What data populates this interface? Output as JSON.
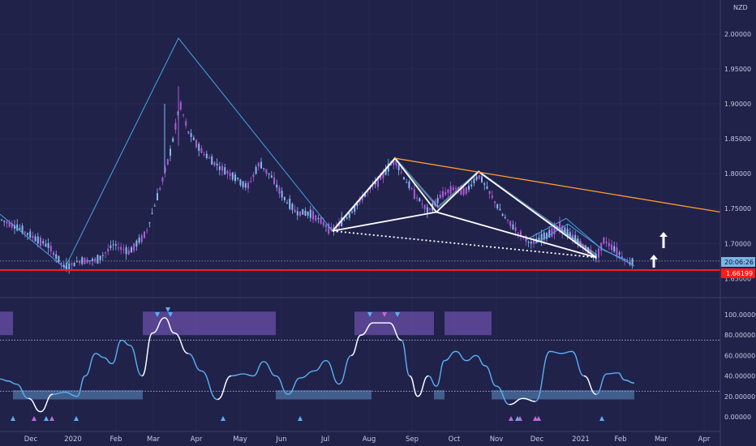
{
  "chart_data": {
    "type": "candlestick",
    "currency_label": "NZD",
    "x_axis_labels": [
      "Dec",
      "2020",
      "Feb",
      "Mar",
      "Apr",
      "May",
      "Jun",
      "Jul",
      "Aug",
      "Sep",
      "Oct",
      "Nov",
      "Dec",
      "2021",
      "Feb",
      "Mar",
      "Apr"
    ],
    "price_axis": {
      "ticks": [
        "2.00000",
        "1.95000",
        "1.90000",
        "1.85000",
        "1.80000",
        "1.75000",
        "1.70000",
        "1.65000"
      ],
      "ylim": [
        1.64,
        2.03
      ],
      "current_price_label": "20:06:26",
      "support_level": 1.66199,
      "support_label": "1.66199"
    },
    "oscillator_axis": {
      "ticks": [
        "100.00000",
        "80.00000",
        "60.00000",
        "40.00000",
        "20.00000",
        "0.00000"
      ],
      "ylim": [
        -8,
        108
      ],
      "upper_level": 75,
      "lower_level": 25
    },
    "price_series": [
      {
        "t": 0,
        "v": 1.735
      },
      {
        "t": 20,
        "v": 1.724
      },
      {
        "t": 40,
        "v": 1.71
      },
      {
        "t": 60,
        "v": 1.696
      },
      {
        "t": 80,
        "v": 1.665
      },
      {
        "t": 100,
        "v": 1.676
      },
      {
        "t": 120,
        "v": 1.676
      },
      {
        "t": 140,
        "v": 1.698
      },
      {
        "t": 160,
        "v": 1.688
      },
      {
        "t": 180,
        "v": 1.715
      },
      {
        "t": 195,
        "v": 1.77
      },
      {
        "t": 210,
        "v": 1.83
      },
      {
        "t": 222,
        "v": 1.9
      },
      {
        "t": 232,
        "v": 1.86
      },
      {
        "t": 250,
        "v": 1.83
      },
      {
        "t": 270,
        "v": 1.81
      },
      {
        "t": 290,
        "v": 1.795
      },
      {
        "t": 305,
        "v": 1.78
      },
      {
        "t": 320,
        "v": 1.815
      },
      {
        "t": 335,
        "v": 1.795
      },
      {
        "t": 350,
        "v": 1.765
      },
      {
        "t": 365,
        "v": 1.745
      },
      {
        "t": 385,
        "v": 1.742
      },
      {
        "t": 410,
        "v": 1.718
      },
      {
        "t": 430,
        "v": 1.74
      },
      {
        "t": 450,
        "v": 1.77
      },
      {
        "t": 470,
        "v": 1.795
      },
      {
        "t": 487,
        "v": 1.82
      },
      {
        "t": 500,
        "v": 1.79
      },
      {
        "t": 515,
        "v": 1.765
      },
      {
        "t": 528,
        "v": 1.745
      },
      {
        "t": 545,
        "v": 1.77
      },
      {
        "t": 560,
        "v": 1.78
      },
      {
        "t": 575,
        "v": 1.775
      },
      {
        "t": 590,
        "v": 1.798
      },
      {
        "t": 605,
        "v": 1.77
      },
      {
        "t": 620,
        "v": 1.74
      },
      {
        "t": 640,
        "v": 1.715
      },
      {
        "t": 655,
        "v": 1.7
      },
      {
        "t": 672,
        "v": 1.71
      },
      {
        "t": 690,
        "v": 1.725
      },
      {
        "t": 705,
        "v": 1.71
      },
      {
        "t": 720,
        "v": 1.695
      },
      {
        "t": 735,
        "v": 1.68
      },
      {
        "t": 745,
        "v": 1.705
      },
      {
        "t": 760,
        "v": 1.69
      },
      {
        "t": 775,
        "v": 1.672
      },
      {
        "t": 782,
        "v": 1.675
      }
    ],
    "oscillator_series": [
      {
        "t": 0,
        "v": 37
      },
      {
        "t": 10,
        "v": 35
      },
      {
        "t": 20,
        "v": 32
      },
      {
        "t": 35,
        "v": 18
      },
      {
        "t": 50,
        "v": 5
      },
      {
        "t": 65,
        "v": 22
      },
      {
        "t": 80,
        "v": 24
      },
      {
        "t": 95,
        "v": 20
      },
      {
        "t": 105,
        "v": 40
      },
      {
        "t": 118,
        "v": 62
      },
      {
        "t": 128,
        "v": 58
      },
      {
        "t": 138,
        "v": 52
      },
      {
        "t": 150,
        "v": 75
      },
      {
        "t": 160,
        "v": 70
      },
      {
        "t": 175,
        "v": 40
      },
      {
        "t": 188,
        "v": 82
      },
      {
        "t": 203,
        "v": 97
      },
      {
        "t": 215,
        "v": 82
      },
      {
        "t": 232,
        "v": 62
      },
      {
        "t": 248,
        "v": 45
      },
      {
        "t": 268,
        "v": 17
      },
      {
        "t": 285,
        "v": 40
      },
      {
        "t": 300,
        "v": 42
      },
      {
        "t": 312,
        "v": 40
      },
      {
        "t": 325,
        "v": 54
      },
      {
        "t": 340,
        "v": 40
      },
      {
        "t": 355,
        "v": 22
      },
      {
        "t": 370,
        "v": 38
      },
      {
        "t": 388,
        "v": 45
      },
      {
        "t": 402,
        "v": 55
      },
      {
        "t": 418,
        "v": 32
      },
      {
        "t": 433,
        "v": 60
      },
      {
        "t": 445,
        "v": 80
      },
      {
        "t": 460,
        "v": 92
      },
      {
        "t": 480,
        "v": 92
      },
      {
        "t": 495,
        "v": 75
      },
      {
        "t": 505,
        "v": 40
      },
      {
        "t": 515,
        "v": 20
      },
      {
        "t": 528,
        "v": 40
      },
      {
        "t": 538,
        "v": 30
      },
      {
        "t": 548,
        "v": 55
      },
      {
        "t": 562,
        "v": 64
      },
      {
        "t": 575,
        "v": 55
      },
      {
        "t": 587,
        "v": 60
      },
      {
        "t": 598,
        "v": 50
      },
      {
        "t": 612,
        "v": 30
      },
      {
        "t": 628,
        "v": 12
      },
      {
        "t": 645,
        "v": 18
      },
      {
        "t": 660,
        "v": 15
      },
      {
        "t": 678,
        "v": 64
      },
      {
        "t": 692,
        "v": 62
      },
      {
        "t": 705,
        "v": 64
      },
      {
        "t": 720,
        "v": 40
      },
      {
        "t": 735,
        "v": 22
      },
      {
        "t": 748,
        "v": 42
      },
      {
        "t": 762,
        "v": 43
      },
      {
        "t": 770,
        "v": 36
      },
      {
        "t": 782,
        "v": 33
      }
    ],
    "colors": {
      "background": "#20224a",
      "up": "#8ab8f0",
      "down": "#b05ad8",
      "support": "#ff1a1a",
      "trendline": "#ff9a2e",
      "pattern": "#ffffff",
      "zigzag": "#4aa3e8",
      "oscillator": "#5ab0f5",
      "overbought_zone": "#6a4fa8",
      "oversold_zone": "#4a6e9e",
      "price_tag": "#7ab6e6"
    }
  }
}
